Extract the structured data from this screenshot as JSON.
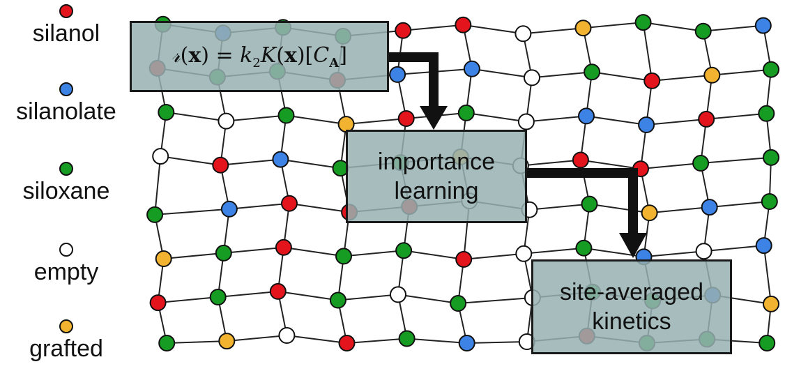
{
  "legend": [
    {
      "label": "silanol",
      "color": "#e3141c"
    },
    {
      "label": "silanolate",
      "color": "#3d83e6"
    },
    {
      "label": "siloxane",
      "color": "#169c22"
    },
    {
      "label": "empty",
      "color": "#ffffff"
    },
    {
      "label": "grafted",
      "color": "#f2b430"
    }
  ],
  "formula": {
    "lhs": "𝓇",
    "x": "x",
    "eq": "=",
    "k": "k",
    "k_sub": "2",
    "K": "K",
    "C": "C",
    "C_sub": "A"
  },
  "boxes": {
    "importance": [
      "importance",
      "learning"
    ],
    "kinetics": [
      "site-averaged",
      "kinetics"
    ]
  },
  "colors": {
    "box_fill": "#96b0b2",
    "edge": "#1a1a1a"
  }
}
